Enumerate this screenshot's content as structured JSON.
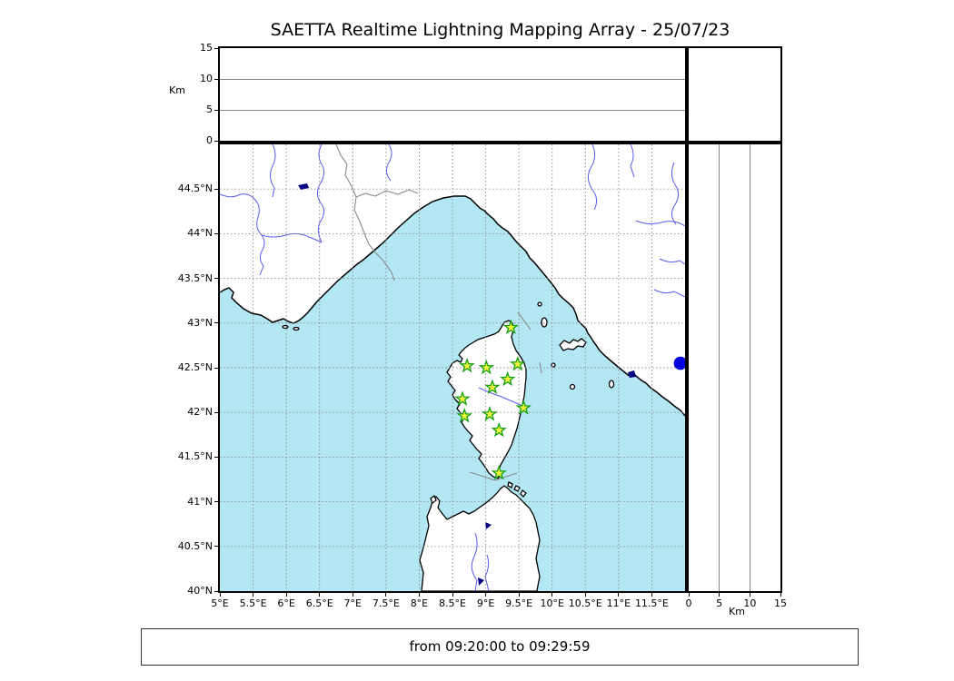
{
  "title": "SAETTA Realtime Lightning Mapping Array - 25/07/23",
  "footer_text": "from 09:20:00 to 09:29:59",
  "axes": {
    "altitude_label": "Km",
    "km_ticks": [
      {
        "v": 0,
        "label": "0"
      },
      {
        "v": 5,
        "label": "5"
      },
      {
        "v": 10,
        "label": "10"
      },
      {
        "v": 15,
        "label": "15"
      }
    ],
    "lon_ticks": [
      {
        "v": 5,
        "label": "5°E"
      },
      {
        "v": 5.5,
        "label": "5.5°E"
      },
      {
        "v": 6,
        "label": "6°E"
      },
      {
        "v": 6.5,
        "label": "6.5°E"
      },
      {
        "v": 7,
        "label": "7°E"
      },
      {
        "v": 7.5,
        "label": "7.5°E"
      },
      {
        "v": 8,
        "label": "8°E"
      },
      {
        "v": 8.5,
        "label": "8.5°E"
      },
      {
        "v": 9,
        "label": "9°E"
      },
      {
        "v": 9.5,
        "label": "9.5°E"
      },
      {
        "v": 10,
        "label": "10°E"
      },
      {
        "v": 10.5,
        "label": "10.5°E"
      },
      {
        "v": 11,
        "label": "11°E"
      },
      {
        "v": 11.5,
        "label": "11.5°E"
      }
    ],
    "lat_ticks": [
      {
        "v": 44.5,
        "label": "44.5°N"
      },
      {
        "v": 44,
        "label": "44°N"
      },
      {
        "v": 43.5,
        "label": "43.5°N"
      },
      {
        "v": 43,
        "label": "43°N"
      },
      {
        "v": 42.5,
        "label": "42.5°N"
      },
      {
        "v": 42,
        "label": "42°N"
      },
      {
        "v": 41.5,
        "label": "41.5°N"
      },
      {
        "v": 41,
        "label": "41°N"
      },
      {
        "v": 40.5,
        "label": "40.5°N"
      },
      {
        "v": 40,
        "label": "40°N"
      }
    ]
  },
  "chart_data": {
    "type": "scatter",
    "title": "SAETTA Realtime Lightning Mapping Array - 25/07/23",
    "time_window": "from 09:20:00 to 09:29:59",
    "map_extent": {
      "lon_min_e": 5,
      "lon_max_e": 12,
      "lat_min_n": 40,
      "lat_max_n": 45
    },
    "altitude_axis": {
      "label": "Km",
      "range_km": [
        0,
        15
      ],
      "ticks": [
        0,
        5,
        10,
        15
      ],
      "gridlines_km": [
        5,
        10
      ]
    },
    "grid_step_deg": 0.5,
    "stations": [
      {
        "lon_e": 9.38,
        "lat_n": 42.95
      },
      {
        "lon_e": 8.72,
        "lat_n": 42.52
      },
      {
        "lon_e": 9.01,
        "lat_n": 42.5
      },
      {
        "lon_e": 9.48,
        "lat_n": 42.54
      },
      {
        "lon_e": 9.33,
        "lat_n": 42.37
      },
      {
        "lon_e": 9.1,
        "lat_n": 42.28
      },
      {
        "lon_e": 8.65,
        "lat_n": 42.15
      },
      {
        "lon_e": 9.57,
        "lat_n": 42.05
      },
      {
        "lon_e": 9.06,
        "lat_n": 41.98
      },
      {
        "lon_e": 8.68,
        "lat_n": 41.96
      },
      {
        "lon_e": 9.2,
        "lat_n": 41.8
      },
      {
        "lon_e": 9.2,
        "lat_n": 41.32
      }
    ],
    "events": [
      {
        "lon_e": 11.93,
        "lat_n": 42.55
      }
    ]
  },
  "colors": {
    "sea": "#b3e7f4",
    "land": "#ffffff",
    "coast": "#000000",
    "grid": "#8a8a8a",
    "panel_gridline": "#888888",
    "river": "#5a5af0",
    "border_line": "#8a8a8a",
    "lake": "#000080",
    "station_fill": "#f0f23c",
    "station_edge": "#15a015",
    "event": "#0000e0"
  }
}
